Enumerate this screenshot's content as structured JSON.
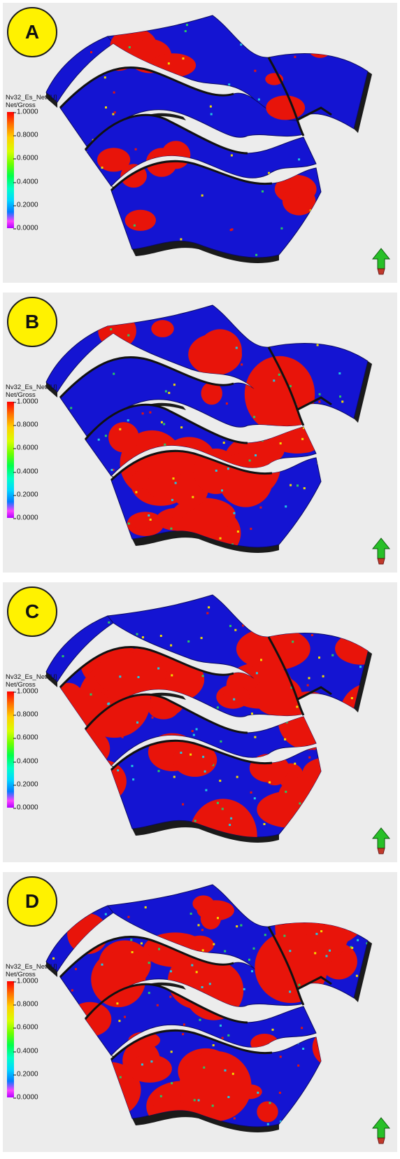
{
  "panels": [
    {
      "label": "A",
      "legend": {
        "title": "Nv32_Es_Net [U]",
        "subtitle": "Net/Gross",
        "ticks": [
          "1.0000",
          "0.8000",
          "0.6000",
          "0.4000",
          "0.2000",
          "0.0000"
        ]
      },
      "net_fraction": 0.12
    },
    {
      "label": "B",
      "legend": {
        "title": "Nv32_Es_Net [U]",
        "subtitle": "Net/Gross",
        "ticks": [
          "1.0000",
          "0.8000",
          "0.6000",
          "0.4000",
          "0.2000",
          "0.0000"
        ]
      },
      "net_fraction": 0.38
    },
    {
      "label": "C",
      "legend": {
        "title": "Nv32_Es_Net [U]",
        "subtitle": "Net/Gross",
        "ticks": [
          "1.0000",
          "0.8000",
          "0.6000",
          "0.4000",
          "0.2000",
          "0.0000"
        ]
      },
      "net_fraction": 0.45
    },
    {
      "label": "D",
      "legend": {
        "title": "Nv32_Es_Net [U]",
        "subtitle": "Net/Gross",
        "ticks": [
          "1.0000",
          "0.8000",
          "0.6000",
          "0.4000",
          "0.2000",
          "0.0000"
        ]
      },
      "net_fraction": 0.55
    }
  ],
  "colors": {
    "background": "#ececec",
    "non_net": "#1414d2",
    "net": "#e8140a",
    "transition": "#f0dc00",
    "transition2": "#28c864",
    "badge": "#fff200",
    "north_arrow": "#28c028"
  },
  "icons": {
    "north_arrow": "north-arrow-icon"
  }
}
